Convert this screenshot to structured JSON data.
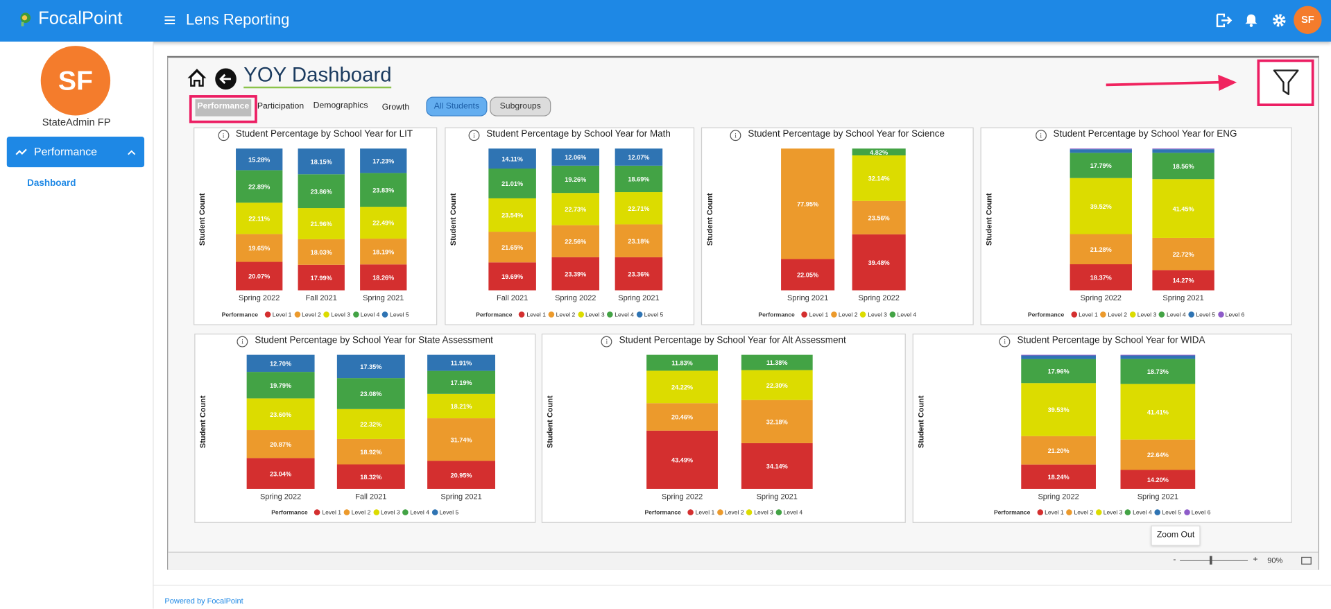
{
  "header": {
    "brand": "FocalPoint",
    "app_title": "Lens Reporting",
    "avatar": "SF"
  },
  "sidebar": {
    "avatar": "SF",
    "user": "StateAdmin FP",
    "menu": "Performance",
    "submenu": "Dashboard"
  },
  "dashboard": {
    "title": "YOY Dashboard",
    "tabs": [
      "Performance",
      "Participation",
      "Demographics",
      "Growth"
    ],
    "toggles": [
      "All Students",
      "Subgroups"
    ]
  },
  "zoom": {
    "tooltip": "Zoom Out",
    "minus": "-",
    "plus": "+",
    "level": "90%"
  },
  "footer": "Powered by FocalPoint",
  "chart_data": [
    {
      "type": "bar",
      "stacked": true,
      "title": "Student Percentage by School Year for LIT",
      "y_label": "Student Count",
      "legend_title": "Performance",
      "categories": [
        "Spring 2022",
        "Fall 2021",
        "Spring 2021"
      ],
      "series": [
        {
          "name": "Level 1",
          "color": "#d42f2f",
          "values": [
            20.07,
            17.99,
            18.26
          ],
          "value_labels": [
            "20.07%",
            "17.99%",
            "18.26%"
          ]
        },
        {
          "name": "Level 2",
          "color": "#ec9a2c",
          "values": [
            19.65,
            18.03,
            18.19
          ],
          "value_labels": [
            "19.65%",
            "18.03%",
            "18.19%"
          ]
        },
        {
          "name": "Level 3",
          "color": "#dcdc00",
          "values": [
            22.11,
            21.96,
            22.49
          ],
          "value_labels": [
            "22.11%",
            "21.96%",
            "22.49%"
          ]
        },
        {
          "name": "Level 4",
          "color": "#43a345",
          "values": [
            22.89,
            23.86,
            23.83
          ],
          "value_labels": [
            "22.89%",
            "23.86%",
            "23.83%"
          ]
        },
        {
          "name": "Level 5",
          "color": "#2f74b3",
          "values": [
            15.28,
            18.15,
            17.23
          ],
          "value_labels": [
            "15.28%",
            "18.15%",
            "17.23%"
          ]
        }
      ]
    },
    {
      "type": "bar",
      "stacked": true,
      "title": "Student Percentage by School Year for Math",
      "y_label": "Student Count",
      "legend_title": "Performance",
      "categories": [
        "Fall 2021",
        "Spring 2022",
        "Spring 2021"
      ],
      "series": [
        {
          "name": "Level 1",
          "color": "#d42f2f",
          "values": [
            19.69,
            23.39,
            23.36
          ],
          "value_labels": [
            "19.69%",
            "23.39%",
            "23.36%"
          ]
        },
        {
          "name": "Level 2",
          "color": "#ec9a2c",
          "values": [
            21.65,
            22.56,
            23.18
          ],
          "value_labels": [
            "21.65%",
            "22.56%",
            "23.18%"
          ]
        },
        {
          "name": "Level 3",
          "color": "#dcdc00",
          "values": [
            23.54,
            22.73,
            22.71
          ],
          "value_labels": [
            "23.54%",
            "22.73%",
            "22.71%"
          ]
        },
        {
          "name": "Level 4",
          "color": "#43a345",
          "values": [
            21.01,
            19.26,
            18.69
          ],
          "value_labels": [
            "21.01%",
            "19.26%",
            "18.69%"
          ]
        },
        {
          "name": "Level 5",
          "color": "#2f74b3",
          "values": [
            14.11,
            12.06,
            12.07
          ],
          "value_labels": [
            "14.11%",
            "12.06%",
            "12.07%"
          ]
        }
      ]
    },
    {
      "type": "bar",
      "stacked": true,
      "title": "Student Percentage by School Year for Science",
      "y_label": "Student Count",
      "legend_title": "Performance",
      "categories": [
        "Spring 2021",
        "Spring 2022"
      ],
      "series": [
        {
          "name": "Level 1",
          "color": "#d42f2f",
          "values": [
            22.05,
            39.48
          ],
          "value_labels": [
            "22.05%",
            "39.48%"
          ]
        },
        {
          "name": "Level 2",
          "color": "#ec9a2c",
          "values": [
            77.95,
            23.56
          ],
          "value_labels": [
            "77.95%",
            "23.56%"
          ]
        },
        {
          "name": "Level 3",
          "color": "#dcdc00",
          "values": [
            0,
            32.14
          ],
          "value_labels": [
            null,
            "32.14%"
          ]
        },
        {
          "name": "Level 4",
          "color": "#43a345",
          "values": [
            0,
            4.82
          ],
          "value_labels": [
            null,
            "4.82%"
          ]
        }
      ]
    },
    {
      "type": "bar",
      "stacked": true,
      "title": "Student Percentage by School Year for ENG",
      "y_label": "Student Count",
      "legend_title": "Performance",
      "categories": [
        "Spring 2022",
        "Spring 2021"
      ],
      "series": [
        {
          "name": "Level 1",
          "color": "#d42f2f",
          "values": [
            18.37,
            14.27
          ],
          "value_labels": [
            "18.37%",
            "14.27%"
          ]
        },
        {
          "name": "Level 2",
          "color": "#ec9a2c",
          "values": [
            21.28,
            22.72
          ],
          "value_labels": [
            "21.28%",
            "22.72%"
          ]
        },
        {
          "name": "Level 3",
          "color": "#dcdc00",
          "values": [
            39.52,
            41.45
          ],
          "value_labels": [
            "39.52%",
            "41.45%"
          ]
        },
        {
          "name": "Level 4",
          "color": "#43a345",
          "values": [
            17.79,
            18.56
          ],
          "value_labels": [
            "17.79%",
            "18.56%"
          ]
        },
        {
          "name": "Level 5",
          "color": "#2f74b3",
          "values": [
            2.5,
            2.5
          ],
          "value_labels": [
            null,
            null
          ]
        },
        {
          "name": "Level 6",
          "color": "#8e5cc9",
          "values": [
            0.5,
            0.5
          ],
          "value_labels": [
            null,
            null
          ]
        }
      ]
    },
    {
      "type": "bar",
      "stacked": true,
      "title": "Student Percentage by School Year for State Assessment",
      "y_label": "Student Count",
      "legend_title": "Performance",
      "categories": [
        "Spring 2022",
        "Fall 2021",
        "Spring 2021"
      ],
      "series": [
        {
          "name": "Level 1",
          "color": "#d42f2f",
          "values": [
            23.04,
            18.32,
            20.95
          ],
          "value_labels": [
            "23.04%",
            "18.32%",
            "20.95%"
          ]
        },
        {
          "name": "Level 2",
          "color": "#ec9a2c",
          "values": [
            20.87,
            18.92,
            31.74
          ],
          "value_labels": [
            "20.87%",
            "18.92%",
            "31.74%"
          ]
        },
        {
          "name": "Level 3",
          "color": "#dcdc00",
          "values": [
            23.6,
            22.32,
            18.21
          ],
          "value_labels": [
            "23.60%",
            "22.32%",
            "18.21%"
          ]
        },
        {
          "name": "Level 4",
          "color": "#43a345",
          "values": [
            19.79,
            23.08,
            17.19
          ],
          "value_labels": [
            "19.79%",
            "23.08%",
            "17.19%"
          ]
        },
        {
          "name": "Level 5",
          "color": "#2f74b3",
          "values": [
            12.7,
            17.35,
            11.91
          ],
          "value_labels": [
            "12.70%",
            "17.35%",
            "11.91%"
          ]
        }
      ]
    },
    {
      "type": "bar",
      "stacked": true,
      "title": "Student Percentage by School Year for Alt Assessment",
      "y_label": "Student Count",
      "legend_title": "Performance",
      "categories": [
        "Spring 2022",
        "Spring 2021"
      ],
      "series": [
        {
          "name": "Level 1",
          "color": "#d42f2f",
          "values": [
            43.49,
            34.14
          ],
          "value_labels": [
            "43.49%",
            "34.14%"
          ]
        },
        {
          "name": "Level 2",
          "color": "#ec9a2c",
          "values": [
            20.46,
            32.18
          ],
          "value_labels": [
            "20.46%",
            "32.18%"
          ]
        },
        {
          "name": "Level 3",
          "color": "#dcdc00",
          "values": [
            24.22,
            22.3
          ],
          "value_labels": [
            "24.22%",
            "22.30%"
          ]
        },
        {
          "name": "Level 4",
          "color": "#43a345",
          "values": [
            11.83,
            11.38
          ],
          "value_labels": [
            "11.83%",
            "11.38%"
          ]
        }
      ]
    },
    {
      "type": "bar",
      "stacked": true,
      "title": "Student Percentage by School Year for WIDA",
      "y_label": "Student Count",
      "legend_title": "Performance",
      "categories": [
        "Spring 2022",
        "Spring 2021"
      ],
      "series": [
        {
          "name": "Level 1",
          "color": "#d42f2f",
          "values": [
            18.24,
            14.2
          ],
          "value_labels": [
            "18.24%",
            "14.20%"
          ]
        },
        {
          "name": "Level 2",
          "color": "#ec9a2c",
          "values": [
            21.2,
            22.64
          ],
          "value_labels": [
            "21.20%",
            "22.64%"
          ]
        },
        {
          "name": "Level 3",
          "color": "#dcdc00",
          "values": [
            39.53,
            41.41
          ],
          "value_labels": [
            "39.53%",
            "41.41%"
          ]
        },
        {
          "name": "Level 4",
          "color": "#43a345",
          "values": [
            17.96,
            18.73
          ],
          "value_labels": [
            "17.96%",
            "18.73%"
          ]
        },
        {
          "name": "Level 5",
          "color": "#2f74b3",
          "values": [
            2.6,
            2.5
          ],
          "value_labels": [
            null,
            null
          ]
        },
        {
          "name": "Level 6",
          "color": "#8e5cc9",
          "values": [
            0.5,
            0.5
          ],
          "value_labels": [
            null,
            null
          ]
        }
      ]
    }
  ]
}
